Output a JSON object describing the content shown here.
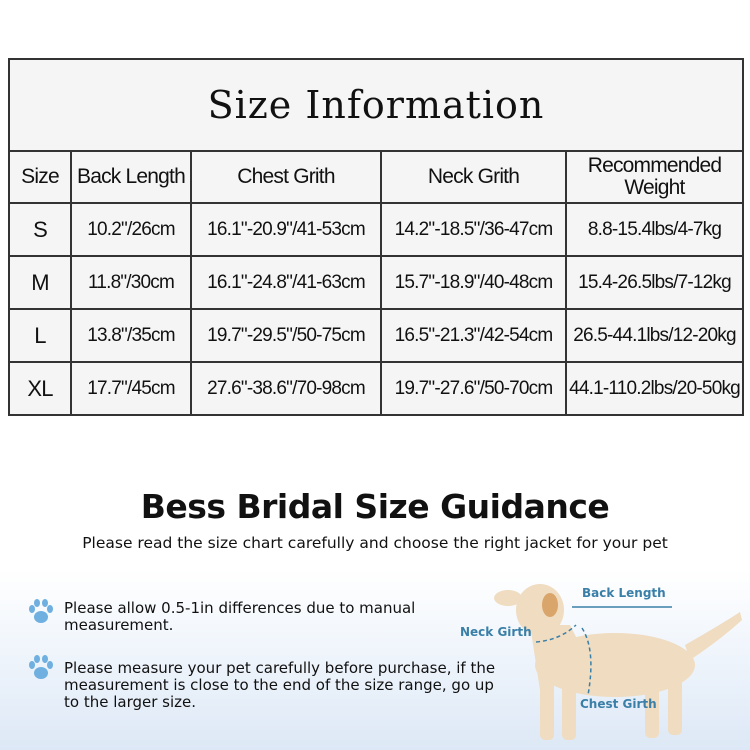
{
  "table": {
    "title": "Size Information",
    "headers": [
      "Size",
      "Back Length",
      "Chest Grith",
      "Neck Grith",
      "Recommended Weight"
    ],
    "rows": [
      [
        "S",
        "10.2\"/26cm",
        "16.1\"-20.9\"/41-53cm",
        "14.2\"-18.5\"/36-47cm",
        "8.8-15.4lbs/4-7kg"
      ],
      [
        "M",
        "11.8\"/30cm",
        "16.1\"-24.8\"/41-63cm",
        "15.7\"-18.9\"/40-48cm",
        "15.4-26.5lbs/7-12kg"
      ],
      [
        "L",
        "13.8\"/35cm",
        "19.7\"-29.5\"/50-75cm",
        "16.5\"-21.3\"/42-54cm",
        "26.5-44.1lbs/12-20kg"
      ],
      [
        "XL",
        "17.7\"/45cm",
        "27.6\"-38.6\"/70-98cm",
        "19.7\"-27.6\"/50-70cm",
        "44.1-110.2lbs/20-50kg"
      ]
    ]
  },
  "guide": {
    "title": "Bess Bridal Size Guidance",
    "subtitle": "Please read the size chart carefully and choose the right jacket for your pet",
    "notes": [
      "Please allow 0.5-1in differences due to manual measurement.",
      "Please measure your pet carefully before purchase, if the measurement is close to the end of the size range, go up to the larger size."
    ],
    "icon": "paw-icon"
  },
  "diagram": {
    "back_length": "Back Length",
    "neck_girth": "Neck Girth",
    "chest_girth": "Chest Girth",
    "accent": "#3a7fa8"
  }
}
